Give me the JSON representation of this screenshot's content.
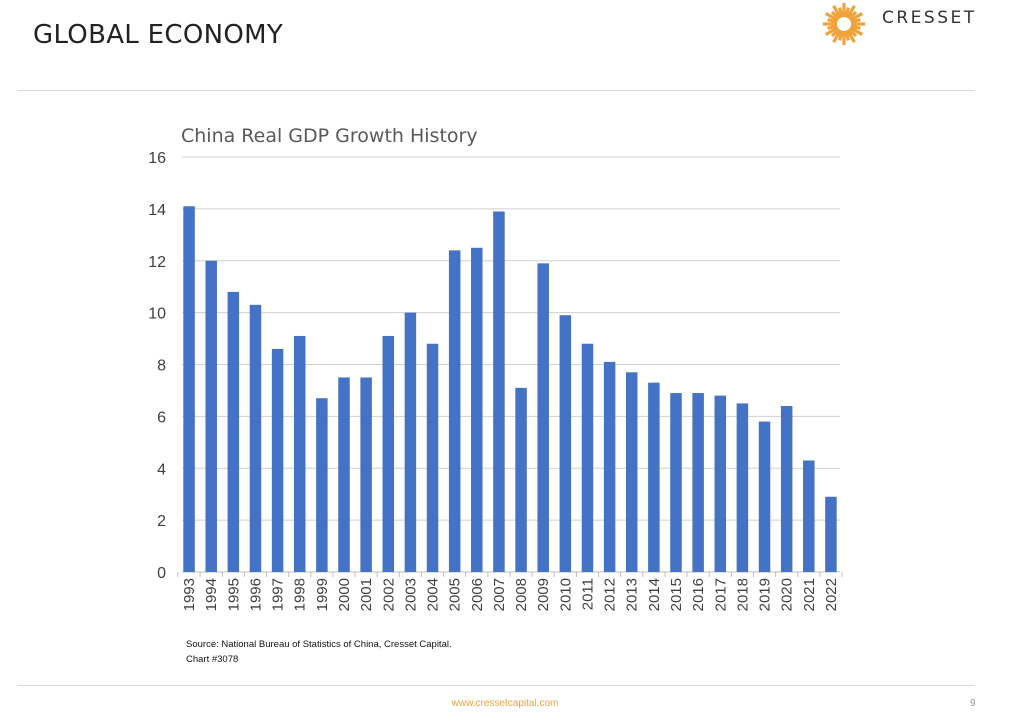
{
  "header": {
    "title": "GLOBAL ECONOMY"
  },
  "logo": {
    "text": "CRESSET",
    "mark_color": "#f0a23a"
  },
  "footer": {
    "url": "www.cressetcapital.com",
    "page_number": "9"
  },
  "source": {
    "line1": "Source: National Bureau of Statistics of China, Cresset Capital.",
    "line2": "Chart #3078"
  },
  "chart_data": {
    "type": "bar",
    "title": "China Real GDP Growth History",
    "xlabel": "",
    "ylabel": "",
    "ylim": [
      0,
      16
    ],
    "yticks": [
      0,
      2,
      4,
      6,
      8,
      10,
      12,
      14,
      16
    ],
    "grid": true,
    "bar_color": "#4472c4",
    "categories": [
      "1993",
      "1994",
      "1995",
      "1996",
      "1997",
      "1998",
      "1999",
      "2000",
      "2001",
      "2002",
      "2003",
      "2004",
      "2005",
      "2006",
      "2007",
      "2008",
      "2009",
      "2010",
      "2011",
      "2012",
      "2013",
      "2014",
      "2015",
      "2016",
      "2017",
      "2018",
      "2019",
      "2020",
      "2021",
      "2022"
    ],
    "values": [
      14.1,
      12.0,
      10.8,
      10.3,
      8.6,
      9.1,
      6.7,
      7.5,
      7.5,
      9.1,
      10.0,
      8.8,
      12.4,
      12.5,
      13.9,
      7.1,
      11.9,
      9.9,
      8.8,
      8.1,
      7.7,
      7.3,
      6.9,
      6.9,
      6.8,
      6.5,
      5.8,
      6.4,
      4.3,
      2.9
    ]
  }
}
